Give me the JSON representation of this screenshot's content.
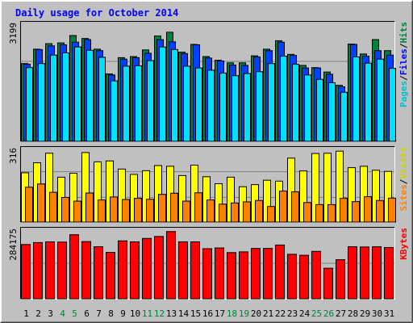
{
  "chart_data": {
    "type": "bar",
    "title": "Daily usage for October 2014",
    "categories": [
      "1",
      "2",
      "3",
      "4",
      "5",
      "6",
      "7",
      "8",
      "9",
      "10",
      "11",
      "12",
      "13",
      "14",
      "15",
      "16",
      "17",
      "18",
      "19",
      "20",
      "21",
      "22",
      "23",
      "24",
      "25",
      "26",
      "27",
      "28",
      "29",
      "30",
      "31"
    ],
    "weekend_days": [
      "4",
      "5",
      "11",
      "12",
      "18",
      "19",
      "25",
      "26"
    ],
    "panels": [
      {
        "id": "pages-files-hits",
        "ymax_label": "3199",
        "ymax": 3199,
        "legend": [
          "Pages",
          "/",
          "Files",
          "/",
          "Hits"
        ],
        "series": [
          {
            "name": "Hits",
            "color": "#008040",
            "values": [
              2110,
              2500,
              2650,
              2670,
              2870,
              2790,
              2500,
              1830,
              2270,
              2300,
              2480,
              2860,
              2960,
              2420,
              2630,
              2300,
              2200,
              2130,
              2130,
              2320,
              2500,
              2730,
              2360,
              2060,
              2000,
              1880,
              1520,
              2640,
              2370,
              2760,
              2460
            ]
          },
          {
            "name": "Files",
            "color": "#0040ff",
            "values": [
              2090,
              2490,
              2590,
              2620,
              2690,
              2760,
              2460,
              1800,
              2230,
              2270,
              2390,
              2760,
              2700,
              2380,
              2620,
              2260,
              2180,
              2070,
              2060,
              2290,
              2460,
              2690,
              2330,
              1990,
              1990,
              1820,
              1480,
              2630,
              2310,
              2460,
              2340
            ]
          },
          {
            "name": "Pages",
            "color": "#00e0ff",
            "values": [
              2000,
              2110,
              2340,
              2400,
              2560,
              2470,
              2280,
              1640,
              2040,
              2050,
              2190,
              2560,
              2490,
              2040,
              1990,
              1930,
              1850,
              1780,
              1840,
              1890,
              2110,
              2310,
              2090,
              1800,
              1680,
              1590,
              1330,
              2290,
              2120,
              2230,
              1980
            ]
          }
        ]
      },
      {
        "id": "sites-visits",
        "ymax_label": "316",
        "ymax": 316,
        "legend": [
          "Sites",
          "/",
          "Visits"
        ],
        "series": [
          {
            "name": "Visits",
            "color": "#ffff00",
            "values": [
              212,
              255,
              296,
              193,
              210,
              299,
              259,
              263,
              228,
              205,
              221,
              243,
              240,
              200,
              245,
              195,
              165,
              193,
              152,
              161,
              180,
              176,
              275,
              220,
              295,
              296,
              305,
              234,
              240,
              223,
              218
            ]
          },
          {
            "name": "Sites",
            "color": "#ff8000",
            "values": [
              150,
              164,
              128,
              106,
              90,
              125,
              95,
              108,
              97,
              102,
              98,
              119,
              124,
              90,
              126,
              95,
              77,
              82,
              87,
              93,
              67,
              133,
              130,
              84,
              75,
              75,
              102,
              88,
              109,
              93,
              103
            ]
          }
        ]
      },
      {
        "id": "kbytes",
        "ymax_label": "284175",
        "ymax": 284175,
        "legend": [
          "KBytes"
        ],
        "series": [
          {
            "name": "KBytes",
            "color": "#ff0000",
            "values": [
              222000,
              230000,
              233000,
              232000,
              262000,
              234000,
              213000,
              190000,
              237000,
              233000,
              247000,
              255000,
              275000,
              233000,
              233000,
              205000,
              208000,
              189000,
              192000,
              206000,
              206000,
              220000,
              182000,
              178000,
              194000,
              125000,
              160000,
              213000,
              212000,
              213000,
              210000
            ]
          }
        ]
      }
    ]
  }
}
